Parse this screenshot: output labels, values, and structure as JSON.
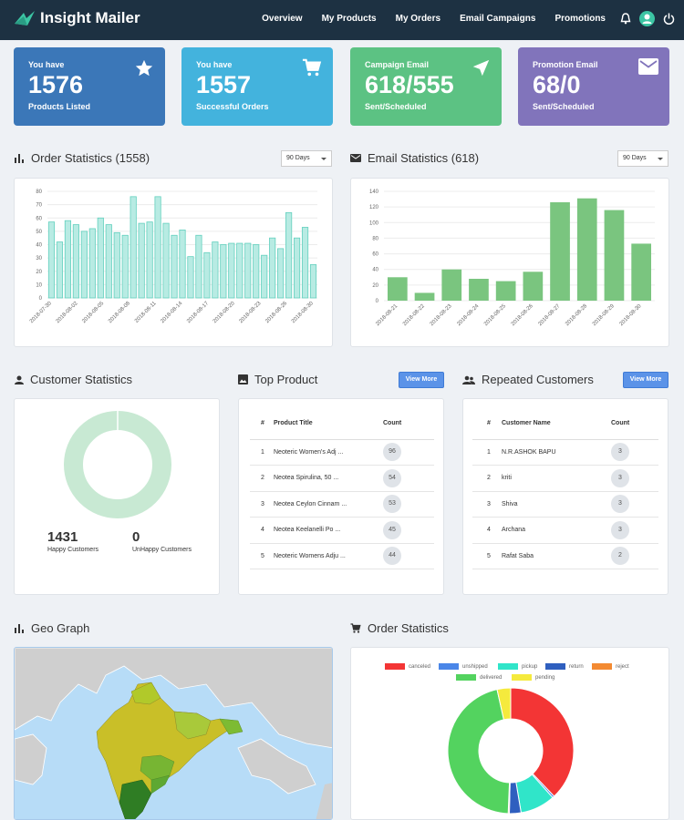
{
  "app": {
    "name": "Insight Mailer"
  },
  "nav": [
    "Overview",
    "My Products",
    "My Orders",
    "Email Campaigns",
    "Promotions"
  ],
  "cards": [
    {
      "label": "You have",
      "value": "1576",
      "sub": "Products Listed",
      "color": "#3b77b8",
      "icon": "star-icon"
    },
    {
      "label": "You have",
      "value": "1557",
      "sub": "Successful Orders",
      "color": "#43b3dd",
      "icon": "cart-icon"
    },
    {
      "label": "Campaign Email",
      "value": "618/555",
      "sub": "Sent/Scheduled",
      "color": "#5cc283",
      "icon": "send-icon"
    },
    {
      "label": "Promotion Email",
      "value": "68/0",
      "sub": "Sent/Scheduled",
      "color": "#8174bb",
      "icon": "mail-icon"
    }
  ],
  "order_stats": {
    "title": "Order Statistics (1558)",
    "range": "90 Days"
  },
  "email_stats": {
    "title": "Email Statistics (618)",
    "range": "90 Days"
  },
  "customer_stats": {
    "title": "Customer Statistics",
    "happy_value": "1431",
    "happy_label": "Happy Customers",
    "unhappy_value": "0",
    "unhappy_label": "UnHappy Customers"
  },
  "top_product": {
    "title": "Top Product",
    "button": "View More",
    "headers": [
      "#",
      "Product Title",
      "Count"
    ],
    "rows": [
      [
        "1",
        "Neoteric Women's Adj ...",
        "96"
      ],
      [
        "2",
        "Neotea Spirulina, 50 ...",
        "54"
      ],
      [
        "3",
        "Neotea Ceylon Cinnam ...",
        "53"
      ],
      [
        "4",
        "Neotea Keelanelli Po ...",
        "45"
      ],
      [
        "5",
        "Neoteric Womens Adju ...",
        "44"
      ]
    ]
  },
  "repeated_customers": {
    "title": "Repeated Customers",
    "button": "View More",
    "headers": [
      "#",
      "Customer Name",
      "Count"
    ],
    "rows": [
      [
        "1",
        "N.R.ASHOK BAPU",
        "3"
      ],
      [
        "2",
        "kriti",
        "3"
      ],
      [
        "3",
        "Shiva",
        "3"
      ],
      [
        "4",
        "Archana",
        "3"
      ],
      [
        "5",
        "Rafat Saba",
        "2"
      ]
    ]
  },
  "geo": {
    "title": "Geo Graph"
  },
  "order_status": {
    "title": "Order Statistics"
  },
  "chart_data": [
    {
      "type": "bar",
      "title": "Order Statistics (1558)",
      "ylim": [
        0,
        80
      ],
      "yticks": [
        0,
        10,
        20,
        30,
        40,
        50,
        60,
        70,
        80
      ],
      "x_tick_labels": [
        "2018-07-30",
        "2018-08-02",
        "2018-08-05",
        "2018-08-08",
        "2018-08-11",
        "2018-08-14",
        "2018-08-17",
        "2018-08-20",
        "2018-08-23",
        "2018-08-26",
        "2018-08-30"
      ],
      "values": [
        57,
        42,
        58,
        55,
        50,
        52,
        60,
        55,
        49,
        47,
        76,
        56,
        57,
        76,
        56,
        47,
        51,
        31,
        47,
        34,
        42,
        40,
        41,
        41,
        41,
        40,
        32,
        45,
        37,
        64,
        45,
        53,
        25
      ],
      "color": "#b8ebe3",
      "border": "#62d0be"
    },
    {
      "type": "bar",
      "title": "Email Statistics (618)",
      "ylim": [
        0,
        140
      ],
      "yticks": [
        0,
        20,
        40,
        60,
        80,
        100,
        120,
        140
      ],
      "categories": [
        "2018-08-21",
        "2018-08-22",
        "2018-08-23",
        "2018-08-24",
        "2018-08-25",
        "2018-08-26",
        "2018-08-27",
        "2018-08-28",
        "2018-08-29",
        "2018-08-30"
      ],
      "values": [
        30,
        10,
        40,
        28,
        25,
        37,
        126,
        131,
        116,
        73
      ],
      "color": "#7ac57f"
    },
    {
      "type": "pie",
      "title": "Customer Statistics",
      "categories": [
        "Happy Customers",
        "UnHappy Customers"
      ],
      "values": [
        1431,
        0
      ],
      "colors": [
        "#c8e9d3",
        "#f0a0a0"
      ]
    },
    {
      "type": "pie",
      "title": "Order Statistics",
      "categories": [
        "canceled",
        "unshipped",
        "pickup",
        "return",
        "reject",
        "delivered",
        "pending"
      ],
      "values": [
        38,
        0.5,
        9,
        3,
        0.3,
        46,
        3.5
      ],
      "colors": [
        "#f33535",
        "#4a86e8",
        "#30e5c9",
        "#2f5fbf",
        "#f38a32",
        "#53d35f",
        "#f5ea3d"
      ]
    }
  ]
}
